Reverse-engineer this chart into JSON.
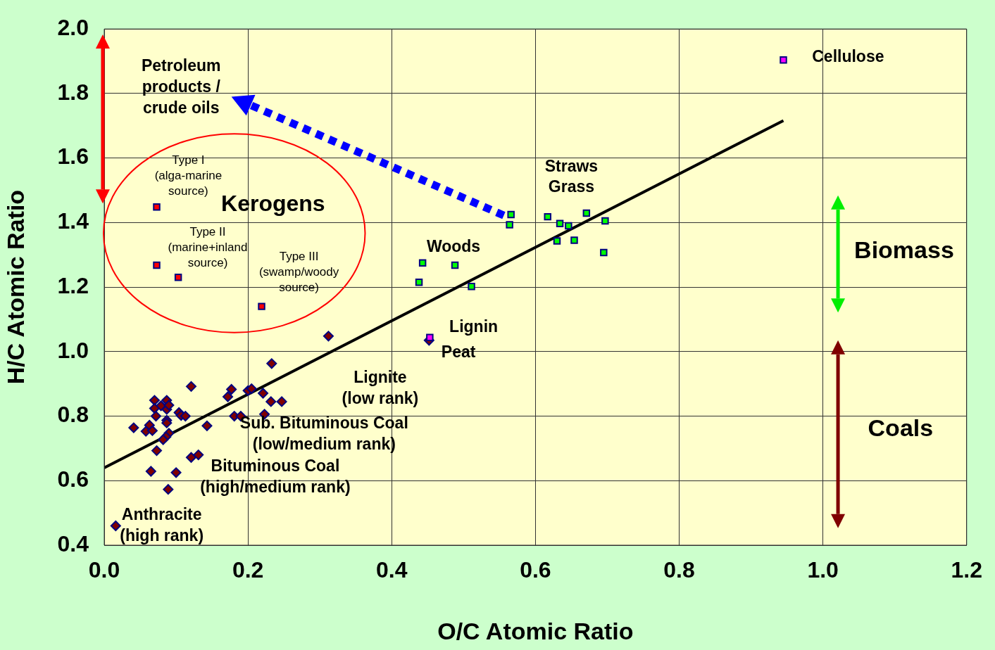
{
  "chart_data": {
    "type": "scatter",
    "xlabel": "O/C Atomic Ratio",
    "ylabel": "H/C Atomic Ratio",
    "xlim": [
      0,
      1.2
    ],
    "xticks": [
      {
        "value": 0,
        "label": "0.0"
      },
      0.2,
      0.4,
      0.6,
      0.8,
      {
        "value": 1,
        "label": "1.0"
      },
      1.2
    ],
    "ylim": [
      0.4,
      2.0
    ],
    "yticks": [
      0.4,
      0.6,
      0.8,
      {
        "value": 1,
        "label": "1.0"
      },
      1.2,
      1.4,
      1.6,
      1.8,
      {
        "value": 2,
        "label": "2.0"
      }
    ],
    "grid": true,
    "series": [
      {
        "marker": "diamond",
        "color": "#800000",
        "x": [
          0.312,
          0.233,
          0.121,
          0.177,
          0.172,
          0.2,
          0.205,
          0.221,
          0.232,
          0.247,
          0.223,
          0.181,
          0.19,
          0.07,
          0.087,
          0.079,
          0.07,
          0.087,
          0.09,
          0.072,
          0.104,
          0.107,
          0.113,
          0.041,
          0.063,
          0.058,
          0.067,
          0.087,
          0.087,
          0.09,
          0.086,
          0.082,
          0.143,
          0.073,
          0.121,
          0.131,
          0.065,
          0.1,
          0.089,
          0.016,
          0.452
        ],
        "values": [
          1.048,
          0.963,
          0.892,
          0.883,
          0.86,
          0.879,
          0.885,
          0.871,
          0.845,
          0.845,
          0.806,
          0.8,
          0.8,
          0.849,
          0.849,
          0.832,
          0.824,
          0.821,
          0.834,
          0.8,
          0.811,
          0.802,
          0.8,
          0.764,
          0.772,
          0.753,
          0.755,
          0.787,
          0.779,
          0.747,
          0.736,
          0.727,
          0.77,
          0.693,
          0.672,
          0.68,
          0.629,
          0.625,
          0.573,
          0.46,
          1.035
        ]
      },
      {
        "marker": "square",
        "color": "#00ff00",
        "x": [
          0.443,
          0.488,
          0.438,
          0.511,
          0.566,
          0.564,
          0.617,
          0.634,
          0.646,
          0.671,
          0.697,
          0.63,
          0.654,
          0.695
        ],
        "values": [
          1.275,
          1.268,
          1.215,
          1.202,
          1.425,
          1.393,
          1.418,
          1.397,
          1.39,
          1.429,
          1.405,
          1.343,
          1.345,
          1.307
        ]
      },
      {
        "marker": "square",
        "color": "#ff00ff",
        "x": [
          0.453,
          0.945
        ],
        "values": [
          1.044,
          1.904
        ]
      },
      {
        "marker": "square",
        "color": "#ff0000",
        "x": [
          0.073,
          0.073,
          0.103,
          0.219
        ],
        "values": [
          1.448,
          1.268,
          1.23,
          1.14
        ]
      },
      {
        "type": "line",
        "marker": "none",
        "color": "#000000",
        "x": [
          0,
          0.945
        ],
        "values": [
          0.64,
          1.716
        ]
      }
    ],
    "annotations": [
      "Petroleum\nproducts /\ncrude oils",
      "Cellulose",
      "Type I\n(alga-marine\nsource)",
      "Kerogens",
      "Type II\n(marine+inland\nsource)",
      "Type III\n(swamp/woody\nsource)",
      "Straws\nGrass",
      "Biomass",
      "Woods",
      "Lignin",
      "Peat",
      "Lignite\n(low rank)",
      "Coals",
      "Sub. Bituminous Coal\n(low/medium rank)",
      "Bituminous Coal\n(high/medium rank)",
      "Anthracite\n(high rank)"
    ]
  }
}
